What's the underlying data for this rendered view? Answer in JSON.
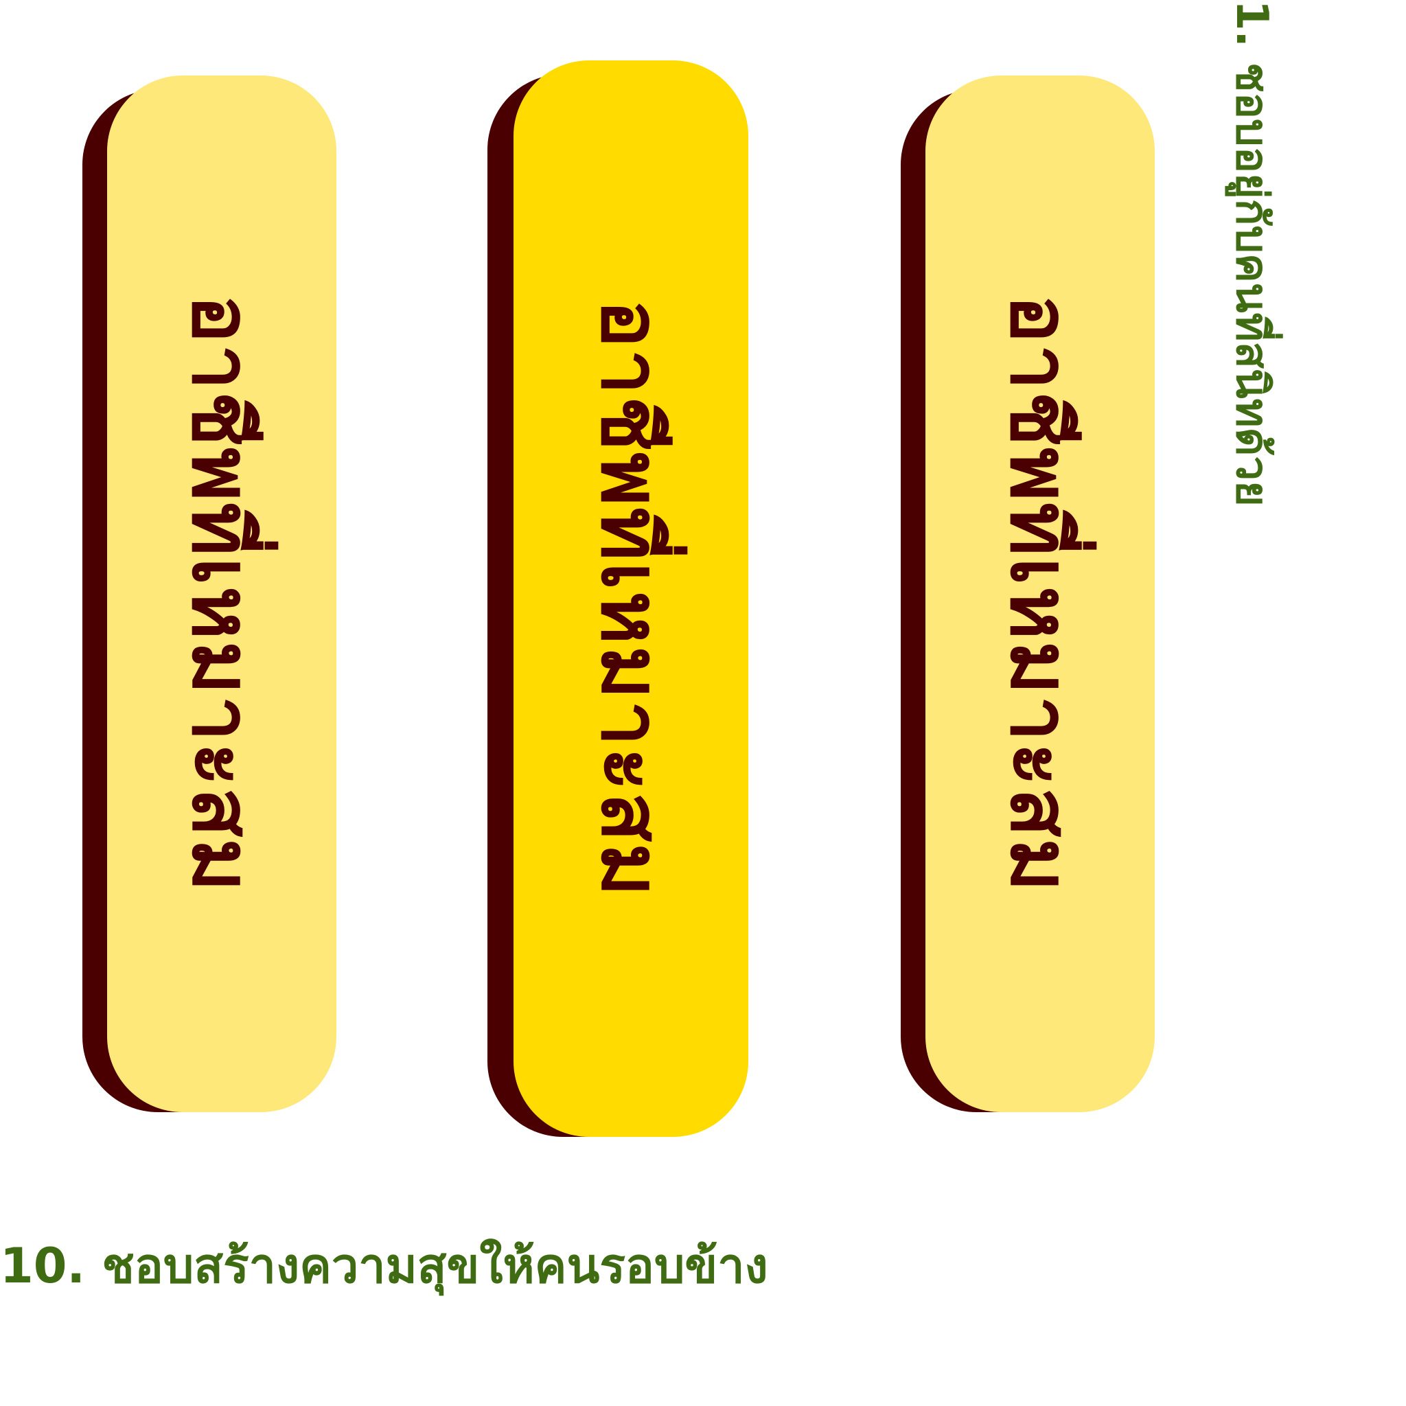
{
  "pills": [
    {
      "label": "อาชีพที่เหมาะสม"
    },
    {
      "label": "อาชีพที่เหมาะสม"
    },
    {
      "label": "อาชีพที่เหมาะสม"
    }
  ],
  "vertical_note": "1. ชอบอยู่กับคนที่สนิทด้วย",
  "bottom_note": "10. ชอบสร้างความสุขให้คนรอบข้าง",
  "colors": {
    "pill_light": "#ffe87a",
    "pill_accent": "#ffdb00",
    "shadow": "#4a0000",
    "text_dark": "#4a0000",
    "note_green": "#3f6b12"
  }
}
